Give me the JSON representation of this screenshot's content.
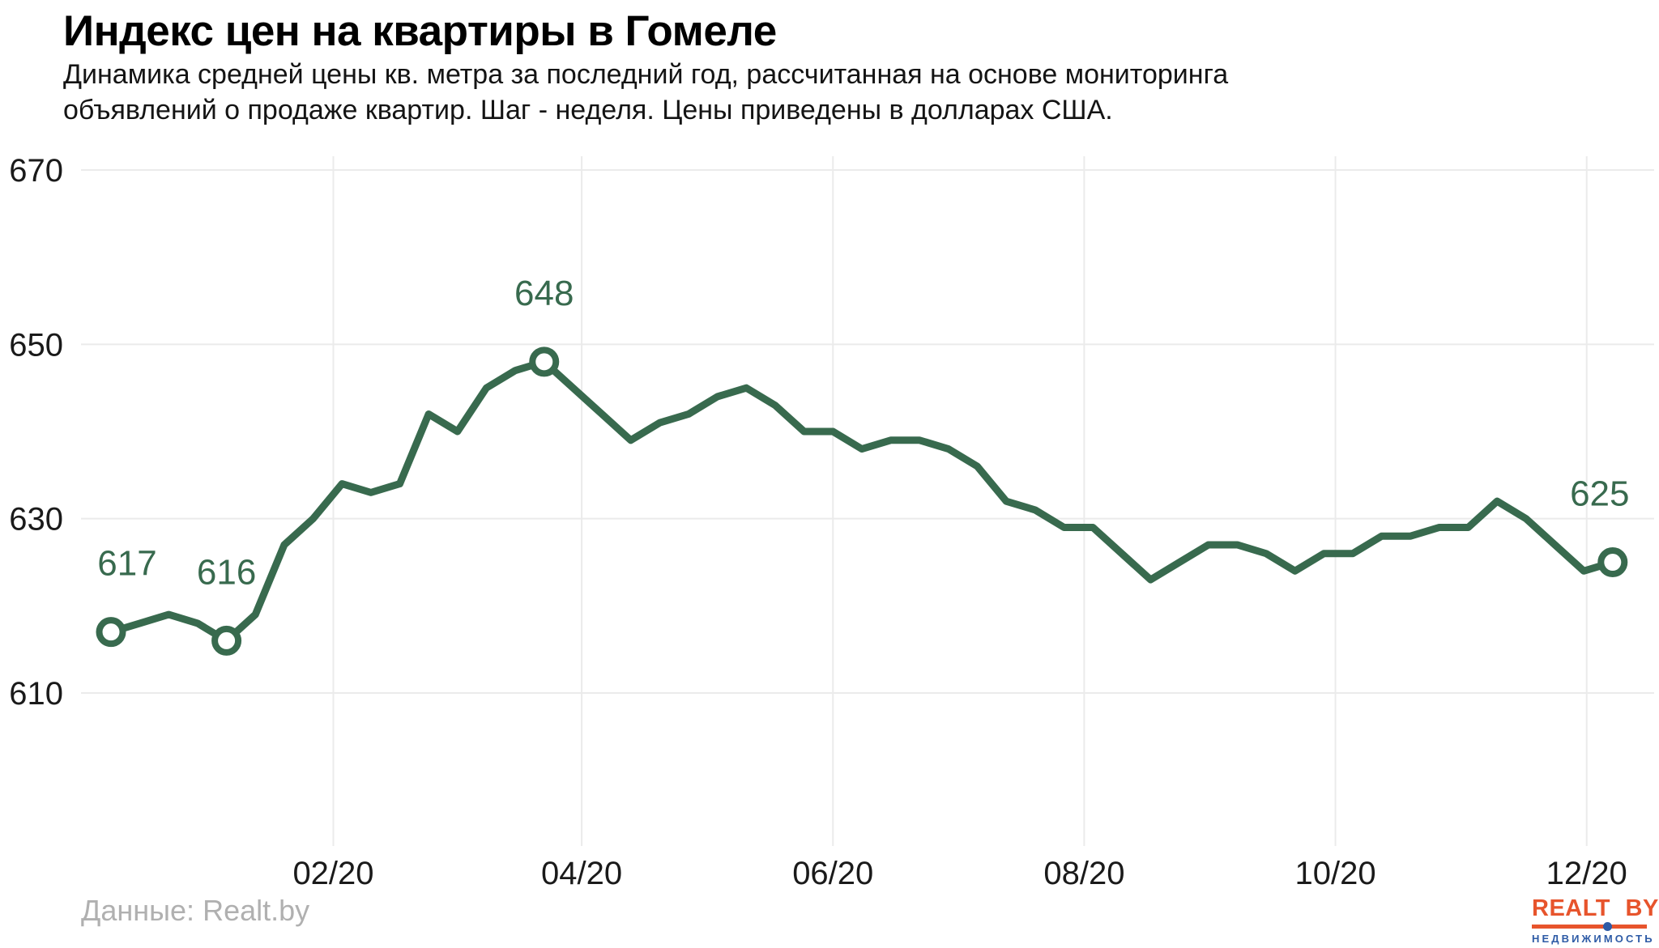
{
  "header": {
    "title": "Индекс цен на квартиры в Гомеле",
    "subtitle": "Динамика средней цены кв. метра за последний год, рассчитанная на основе мониторинга\nобъявлений о продаже квартир. Шаг - неделя. Цены приведены в долларах США."
  },
  "footer": {
    "source": "Данные: Realt.by"
  },
  "logo": {
    "title": "REALT BY",
    "subtitle": "НЕДВИЖИМОСТЬ"
  },
  "colors": {
    "line": "#386a4e",
    "annotation_text": "#386a4e",
    "grid": "#ebebeb",
    "axis_text": "#1a1a1a",
    "source_text": "#b0b0b0",
    "logo_orange": "#e7542c",
    "logo_blue": "#2e5ba6",
    "background": "#ffffff",
    "marker_fill": "#ffffff"
  },
  "chart_data": {
    "type": "line",
    "title": "Индекс цен на квартиры в Гомеле",
    "subtitle": "Динамика средней цены кв. метра за последний год (шаг - неделя), доллары США",
    "x_unit": "week",
    "values": [
      617,
      618,
      619,
      618,
      616,
      619,
      627,
      630,
      634,
      633,
      634,
      642,
      640,
      645,
      647,
      648,
      645,
      642,
      639,
      641,
      642,
      644,
      645,
      643,
      640,
      640,
      638,
      639,
      639,
      638,
      636,
      632,
      631,
      629,
      629,
      626,
      623,
      625,
      627,
      627,
      626,
      624,
      626,
      626,
      628,
      628,
      629,
      629,
      632,
      630,
      627,
      624,
      625
    ],
    "y_ticks": [
      670,
      650,
      630,
      610
    ],
    "ylim": [
      592,
      672
    ],
    "grid": true,
    "legend": false,
    "x_ticks": [
      {
        "label": "02/20",
        "week": 7.7
      },
      {
        "label": "04/20",
        "week": 16.3
      },
      {
        "label": "06/20",
        "week": 25.0
      },
      {
        "label": "08/20",
        "week": 33.7
      },
      {
        "label": "10/20",
        "week": 42.4
      },
      {
        "label": "12/20",
        "week": 51.1
      }
    ],
    "annotations": [
      {
        "index": 0,
        "label": "617",
        "dx": 20
      },
      {
        "index": 4,
        "label": "616",
        "dx": 0
      },
      {
        "index": 15,
        "label": "648",
        "dx": 0
      },
      {
        "index": 52,
        "label": "625",
        "dx": -16
      }
    ]
  }
}
